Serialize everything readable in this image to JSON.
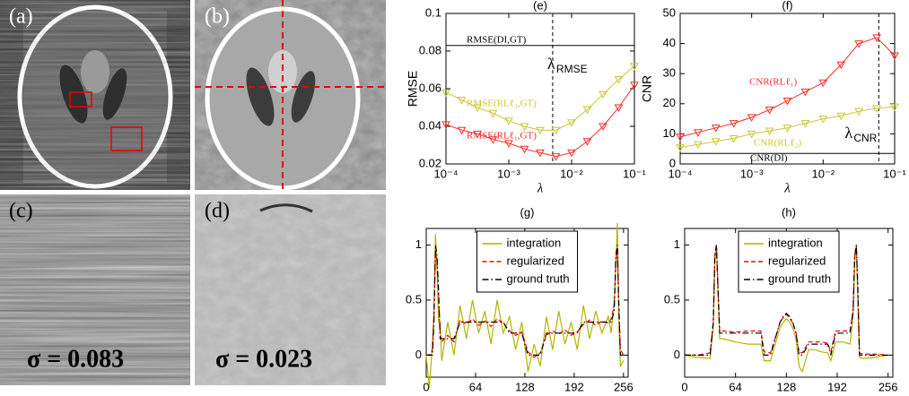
{
  "panels": [
    {
      "label": "(a)"
    },
    {
      "label": "(b)"
    },
    {
      "label": "(c)",
      "sigma_label": "σ = 0.083"
    },
    {
      "label": "(d)",
      "sigma_label": "σ = 0.023"
    }
  ],
  "chart_data": [
    {
      "type": "line",
      "title": "(e)",
      "ylabel": "RMSE",
      "xlabel": "λ",
      "xlog": true,
      "xlim": [
        0.0001,
        0.1
      ],
      "ylim": [
        0.02,
        0.1
      ],
      "xticks": [
        {
          "value": 0.0001,
          "label": "10⁻⁴"
        },
        {
          "value": 0.001,
          "label": "10⁻³"
        },
        {
          "value": 0.01,
          "label": "10⁻²"
        },
        {
          "value": 0.1,
          "label": "10⁻¹"
        }
      ],
      "yticks": [
        0.02,
        0.04,
        0.06,
        0.08,
        0.1
      ],
      "x": [
        0.0001,
        0.000178,
        0.000316,
        0.000562,
        0.001,
        0.00178,
        0.00316,
        0.00562,
        0.01,
        0.0178,
        0.0316,
        0.0562,
        0.1
      ],
      "series": [
        {
          "name": "RMSE(DI,GT)",
          "color": "#000000",
          "values": [
            0.083,
            0.083,
            0.083,
            0.083,
            0.083,
            0.083,
            0.083,
            0.083,
            0.083,
            0.083,
            0.083,
            0.083,
            0.083
          ]
        },
        {
          "name": "RMSE(RLℓ₂,GT)",
          "color": "#c8c832",
          "marker": "triangle-down",
          "values": [
            0.058,
            0.054,
            0.05,
            0.047,
            0.043,
            0.04,
            0.038,
            0.038,
            0.042,
            0.049,
            0.057,
            0.065,
            0.072
          ]
        },
        {
          "name": "RMSE(RLℓ₁,GT)",
          "color": "#ff2a2a",
          "marker": "triangle-down",
          "values": [
            0.041,
            0.038,
            0.036,
            0.033,
            0.031,
            0.028,
            0.026,
            0.024,
            0.026,
            0.032,
            0.04,
            0.05,
            0.062
          ]
        }
      ],
      "vline": {
        "x": 0.005,
        "label": "λ",
        "sub": "RMSE"
      }
    },
    {
      "type": "line",
      "title": "(f)",
      "ylabel": "CNR",
      "xlabel": "λ",
      "xlog": true,
      "xlim": [
        0.0001,
        0.1
      ],
      "ylim": [
        0,
        50
      ],
      "xticks": [
        {
          "value": 0.0001,
          "label": "10⁻⁴"
        },
        {
          "value": 0.001,
          "label": "10⁻³"
        },
        {
          "value": 0.01,
          "label": "10⁻²"
        },
        {
          "value": 0.1,
          "label": "10⁻¹"
        }
      ],
      "yticks": [
        0,
        10,
        20,
        30,
        40,
        50
      ],
      "x": [
        0.0001,
        0.000178,
        0.000316,
        0.000562,
        0.001,
        0.00178,
        0.00316,
        0.00562,
        0.01,
        0.0178,
        0.0316,
        0.0562,
        0.1
      ],
      "series": [
        {
          "name": "CNR(RLℓ₁)",
          "color": "#ff2a2a",
          "marker": "triangle-down",
          "values": [
            9,
            10.5,
            12,
            13.5,
            15.5,
            18,
            21,
            24,
            27,
            33,
            40,
            42,
            36
          ]
        },
        {
          "name": "CNR(RLℓ₂)",
          "color": "#c8c832",
          "marker": "triangle-down",
          "values": [
            5.5,
            6.5,
            7.5,
            8.5,
            10,
            11,
            12,
            13.5,
            15,
            16,
            17.5,
            18.5,
            19
          ]
        },
        {
          "name": "CNR(DI)",
          "color": "#000000",
          "values": [
            3.5,
            3.5,
            3.5,
            3.5,
            3.5,
            3.5,
            3.5,
            3.5,
            3.5,
            3.5,
            3.5,
            3.5,
            3.5
          ]
        }
      ],
      "vline": {
        "x": 0.06,
        "label": "λ",
        "sub": "CNR"
      }
    },
    {
      "type": "line",
      "title": "(g)",
      "xlim": [
        0,
        262
      ],
      "ylim": [
        -0.2,
        1.15
      ],
      "xticks": [
        0,
        64,
        128,
        192,
        256
      ],
      "yticks": [
        0,
        0.5,
        1
      ],
      "legend": "upper center",
      "x": [
        0,
        4,
        8,
        10,
        12,
        14,
        16,
        18,
        20,
        28,
        36,
        44,
        52,
        60,
        68,
        76,
        84,
        92,
        100,
        108,
        116,
        124,
        132,
        140,
        148,
        156,
        164,
        172,
        180,
        188,
        196,
        204,
        212,
        220,
        228,
        236,
        240,
        244,
        246,
        248,
        250,
        252,
        256
      ],
      "series": [
        {
          "name": "integration",
          "color": "#b4b400",
          "dash": "solid",
          "values": [
            0,
            -0.3,
            0.1,
            0.4,
            1.1,
            0.8,
            0.3,
            0.3,
            -0.05,
            0.3,
            0,
            0.45,
            0.15,
            0.5,
            0.2,
            0.4,
            0.1,
            0.5,
            0.2,
            0.35,
            0.05,
            0.3,
            -0.15,
            0.1,
            -0.1,
            0.35,
            0.05,
            0.4,
            0.1,
            0.3,
            0.05,
            0.45,
            0.15,
            0.4,
            0.2,
            0.35,
            0.2,
            0.5,
            0.8,
            1.2,
            0.3,
            -0.1,
            -0.05
          ]
        },
        {
          "name": "regularized",
          "color": "#ff0000",
          "dash": "dashed",
          "values": [
            0,
            0,
            0.05,
            0.35,
            0.95,
            0.85,
            0.55,
            0.2,
            0.12,
            0.18,
            0.12,
            0.32,
            0.28,
            0.33,
            0.27,
            0.31,
            0.26,
            0.33,
            0.29,
            0.22,
            0.18,
            0.21,
            0.03,
            -0.02,
            0.02,
            0.18,
            0.22,
            0.19,
            0.23,
            0.18,
            0.21,
            0.28,
            0.32,
            0.27,
            0.31,
            0.29,
            0.33,
            0.45,
            0.85,
            0.95,
            0.45,
            0.05,
            0
          ]
        },
        {
          "name": "ground truth",
          "color": "#000000",
          "dash": "dashdot",
          "values": [
            0,
            0,
            0,
            0.3,
            1,
            0.9,
            0.6,
            0.15,
            0.15,
            0.15,
            0.15,
            0.3,
            0.3,
            0.3,
            0.3,
            0.3,
            0.3,
            0.3,
            0.3,
            0.2,
            0.2,
            0.2,
            0,
            0,
            0,
            0.2,
            0.2,
            0.2,
            0.2,
            0.2,
            0.2,
            0.3,
            0.3,
            0.3,
            0.3,
            0.3,
            0.3,
            0.4,
            0.9,
            1,
            0.4,
            0,
            0
          ]
        }
      ]
    },
    {
      "type": "line",
      "title": "(h)",
      "xlim": [
        0,
        262
      ],
      "ylim": [
        -0.2,
        1.15
      ],
      "xticks": [
        0,
        64,
        128,
        192,
        256
      ],
      "yticks": [
        0,
        0.5,
        1
      ],
      "legend": "upper center",
      "x": [
        0,
        16,
        32,
        36,
        38,
        40,
        42,
        44,
        48,
        64,
        80,
        96,
        100,
        108,
        116,
        120,
        124,
        128,
        132,
        136,
        140,
        144,
        148,
        156,
        164,
        172,
        180,
        184,
        190,
        200,
        208,
        212,
        214,
        216,
        218,
        220,
        224,
        240,
        256
      ],
      "series": [
        {
          "name": "integration",
          "color": "#b4b400",
          "dash": "solid",
          "values": [
            0,
            -0.02,
            -0.03,
            0.25,
            0.85,
            1,
            0.55,
            0.15,
            0.15,
            0.12,
            0.1,
            0.1,
            -0.05,
            -0.05,
            0.15,
            0.25,
            0.3,
            0.33,
            0.3,
            0.25,
            0.15,
            -0.1,
            -0.15,
            0.05,
            0.05,
            0.03,
            0.02,
            -0.05,
            0.12,
            0.12,
            0.1,
            0.35,
            0.85,
            1,
            0.5,
            -0.02,
            -0.03,
            -0.02,
            0
          ]
        },
        {
          "name": "regularized",
          "color": "#ff0000",
          "dash": "dashed",
          "values": [
            0,
            0,
            0.02,
            0.3,
            0.9,
            1,
            0.6,
            0.22,
            0.22,
            0.21,
            0.22,
            0.22,
            0.03,
            0.02,
            0.2,
            0.3,
            0.34,
            0.37,
            0.34,
            0.29,
            0.21,
            0.03,
            0.02,
            0.12,
            0.12,
            0.12,
            0.11,
            0.03,
            0.22,
            0.22,
            0.22,
            0.4,
            0.9,
            1,
            0.6,
            0.02,
            0.01,
            0.01,
            0
          ]
        },
        {
          "name": "ground truth",
          "color": "#000000",
          "dash": "dashdot",
          "values": [
            0,
            0,
            0,
            0.3,
            0.9,
            1,
            0.6,
            0.2,
            0.2,
            0.2,
            0.2,
            0.2,
            0,
            0,
            0.2,
            0.3,
            0.35,
            0.38,
            0.35,
            0.3,
            0.2,
            0,
            0,
            0.1,
            0.1,
            0.1,
            0.1,
            0,
            0.2,
            0.2,
            0.2,
            0.4,
            0.9,
            1,
            0.6,
            0,
            0,
            0,
            0
          ]
        }
      ]
    }
  ]
}
